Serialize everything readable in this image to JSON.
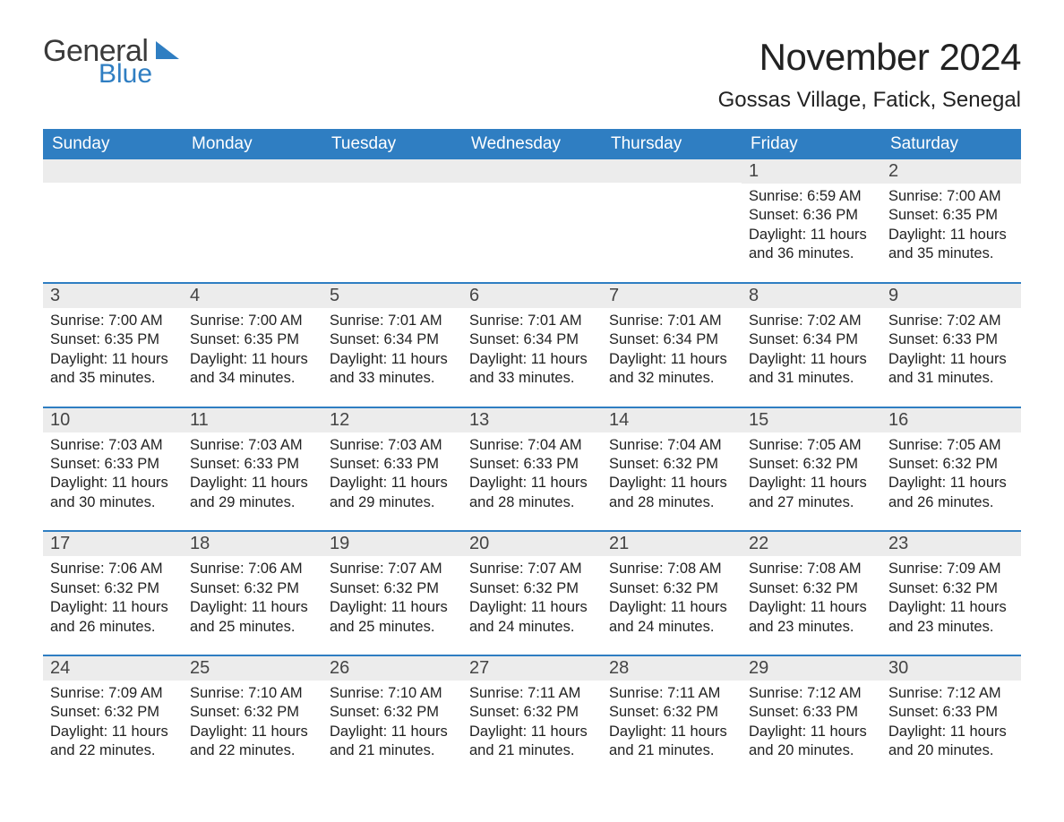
{
  "brand": {
    "name1": "General",
    "name2": "Blue",
    "triangle_color": "#2f7ec2"
  },
  "title": "November 2024",
  "location": "Gossas Village, Fatick, Senegal",
  "header_bg": "#2f7ec2",
  "header_fg": "#ffffff",
  "daynum_bg": "#ececec",
  "week_border": "#2f7ec2",
  "dow": [
    "Sunday",
    "Monday",
    "Tuesday",
    "Wednesday",
    "Thursday",
    "Friday",
    "Saturday"
  ],
  "weeks": [
    [
      null,
      null,
      null,
      null,
      null,
      {
        "n": "1",
        "sr": "Sunrise: 6:59 AM",
        "ss": "Sunset: 6:36 PM",
        "dl": "Daylight: 11 hours and 36 minutes."
      },
      {
        "n": "2",
        "sr": "Sunrise: 7:00 AM",
        "ss": "Sunset: 6:35 PM",
        "dl": "Daylight: 11 hours and 35 minutes."
      }
    ],
    [
      {
        "n": "3",
        "sr": "Sunrise: 7:00 AM",
        "ss": "Sunset: 6:35 PM",
        "dl": "Daylight: 11 hours and 35 minutes."
      },
      {
        "n": "4",
        "sr": "Sunrise: 7:00 AM",
        "ss": "Sunset: 6:35 PM",
        "dl": "Daylight: 11 hours and 34 minutes."
      },
      {
        "n": "5",
        "sr": "Sunrise: 7:01 AM",
        "ss": "Sunset: 6:34 PM",
        "dl": "Daylight: 11 hours and 33 minutes."
      },
      {
        "n": "6",
        "sr": "Sunrise: 7:01 AM",
        "ss": "Sunset: 6:34 PM",
        "dl": "Daylight: 11 hours and 33 minutes."
      },
      {
        "n": "7",
        "sr": "Sunrise: 7:01 AM",
        "ss": "Sunset: 6:34 PM",
        "dl": "Daylight: 11 hours and 32 minutes."
      },
      {
        "n": "8",
        "sr": "Sunrise: 7:02 AM",
        "ss": "Sunset: 6:34 PM",
        "dl": "Daylight: 11 hours and 31 minutes."
      },
      {
        "n": "9",
        "sr": "Sunrise: 7:02 AM",
        "ss": "Sunset: 6:33 PM",
        "dl": "Daylight: 11 hours and 31 minutes."
      }
    ],
    [
      {
        "n": "10",
        "sr": "Sunrise: 7:03 AM",
        "ss": "Sunset: 6:33 PM",
        "dl": "Daylight: 11 hours and 30 minutes."
      },
      {
        "n": "11",
        "sr": "Sunrise: 7:03 AM",
        "ss": "Sunset: 6:33 PM",
        "dl": "Daylight: 11 hours and 29 minutes."
      },
      {
        "n": "12",
        "sr": "Sunrise: 7:03 AM",
        "ss": "Sunset: 6:33 PM",
        "dl": "Daylight: 11 hours and 29 minutes."
      },
      {
        "n": "13",
        "sr": "Sunrise: 7:04 AM",
        "ss": "Sunset: 6:33 PM",
        "dl": "Daylight: 11 hours and 28 minutes."
      },
      {
        "n": "14",
        "sr": "Sunrise: 7:04 AM",
        "ss": "Sunset: 6:32 PM",
        "dl": "Daylight: 11 hours and 28 minutes."
      },
      {
        "n": "15",
        "sr": "Sunrise: 7:05 AM",
        "ss": "Sunset: 6:32 PM",
        "dl": "Daylight: 11 hours and 27 minutes."
      },
      {
        "n": "16",
        "sr": "Sunrise: 7:05 AM",
        "ss": "Sunset: 6:32 PM",
        "dl": "Daylight: 11 hours and 26 minutes."
      }
    ],
    [
      {
        "n": "17",
        "sr": "Sunrise: 7:06 AM",
        "ss": "Sunset: 6:32 PM",
        "dl": "Daylight: 11 hours and 26 minutes."
      },
      {
        "n": "18",
        "sr": "Sunrise: 7:06 AM",
        "ss": "Sunset: 6:32 PM",
        "dl": "Daylight: 11 hours and 25 minutes."
      },
      {
        "n": "19",
        "sr": "Sunrise: 7:07 AM",
        "ss": "Sunset: 6:32 PM",
        "dl": "Daylight: 11 hours and 25 minutes."
      },
      {
        "n": "20",
        "sr": "Sunrise: 7:07 AM",
        "ss": "Sunset: 6:32 PM",
        "dl": "Daylight: 11 hours and 24 minutes."
      },
      {
        "n": "21",
        "sr": "Sunrise: 7:08 AM",
        "ss": "Sunset: 6:32 PM",
        "dl": "Daylight: 11 hours and 24 minutes."
      },
      {
        "n": "22",
        "sr": "Sunrise: 7:08 AM",
        "ss": "Sunset: 6:32 PM",
        "dl": "Daylight: 11 hours and 23 minutes."
      },
      {
        "n": "23",
        "sr": "Sunrise: 7:09 AM",
        "ss": "Sunset: 6:32 PM",
        "dl": "Daylight: 11 hours and 23 minutes."
      }
    ],
    [
      {
        "n": "24",
        "sr": "Sunrise: 7:09 AM",
        "ss": "Sunset: 6:32 PM",
        "dl": "Daylight: 11 hours and 22 minutes."
      },
      {
        "n": "25",
        "sr": "Sunrise: 7:10 AM",
        "ss": "Sunset: 6:32 PM",
        "dl": "Daylight: 11 hours and 22 minutes."
      },
      {
        "n": "26",
        "sr": "Sunrise: 7:10 AM",
        "ss": "Sunset: 6:32 PM",
        "dl": "Daylight: 11 hours and 21 minutes."
      },
      {
        "n": "27",
        "sr": "Sunrise: 7:11 AM",
        "ss": "Sunset: 6:32 PM",
        "dl": "Daylight: 11 hours and 21 minutes."
      },
      {
        "n": "28",
        "sr": "Sunrise: 7:11 AM",
        "ss": "Sunset: 6:32 PM",
        "dl": "Daylight: 11 hours and 21 minutes."
      },
      {
        "n": "29",
        "sr": "Sunrise: 7:12 AM",
        "ss": "Sunset: 6:33 PM",
        "dl": "Daylight: 11 hours and 20 minutes."
      },
      {
        "n": "30",
        "sr": "Sunrise: 7:12 AM",
        "ss": "Sunset: 6:33 PM",
        "dl": "Daylight: 11 hours and 20 minutes."
      }
    ]
  ]
}
